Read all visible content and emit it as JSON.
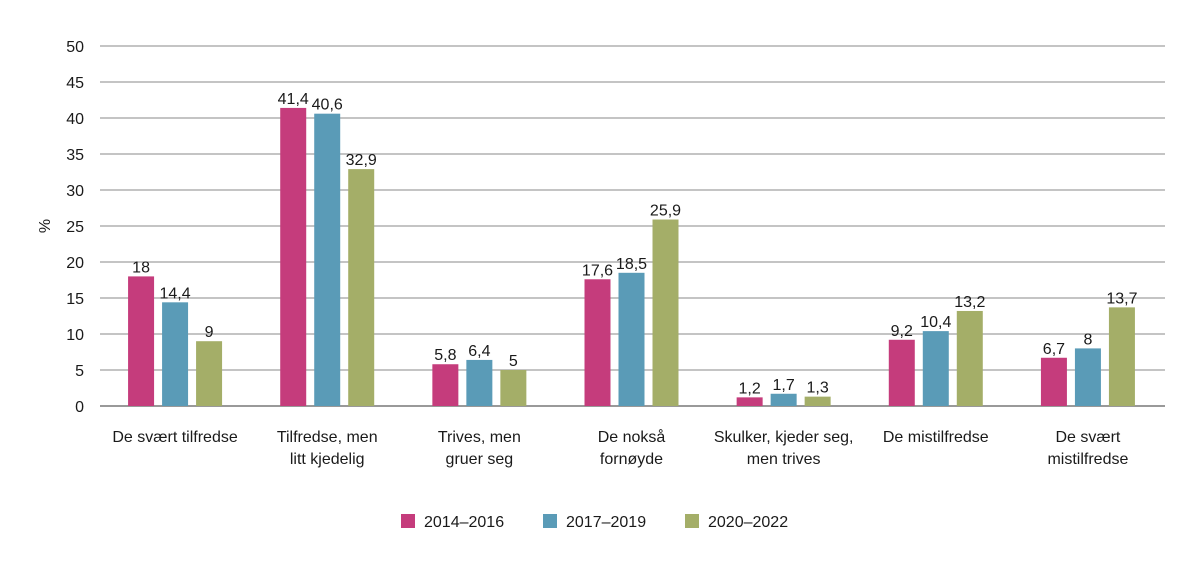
{
  "chart_data": {
    "type": "bar",
    "title": "",
    "xlabel": "",
    "ylabel": "%",
    "ylim": [
      0,
      50
    ],
    "yticks": [
      0,
      5,
      10,
      15,
      20,
      25,
      30,
      35,
      40,
      45,
      50
    ],
    "grid": true,
    "legend_position": "bottom",
    "categories": [
      [
        "De svært tilfredse"
      ],
      [
        "Tilfredse, men",
        "litt kjedelig"
      ],
      [
        "Trives, men",
        "gruer seg"
      ],
      [
        "De nokså",
        "fornøyde"
      ],
      [
        "Skulker, kjeder seg,",
        "men trives"
      ],
      [
        "De mistilfredse"
      ],
      [
        "De svært",
        "mistilfredse"
      ]
    ],
    "series": [
      {
        "name": "2014–2016",
        "color": "#c53c7c",
        "values": [
          18,
          41.4,
          5.8,
          17.6,
          1.2,
          9.2,
          6.7
        ],
        "labels": [
          "18",
          "41,4",
          "5,8",
          "17,6",
          "1,2",
          "9,2",
          "6,7"
        ]
      },
      {
        "name": "2017–2019",
        "color": "#5a9bb7",
        "values": [
          14.4,
          40.6,
          6.4,
          18.5,
          1.7,
          10.4,
          8
        ],
        "labels": [
          "14,4",
          "40,6",
          "6,4",
          "18,5",
          "1,7",
          "10,4",
          "8"
        ]
      },
      {
        "name": "2020–2022",
        "color": "#a4ae68",
        "values": [
          9,
          32.9,
          5,
          25.9,
          1.3,
          13.2,
          13.7
        ],
        "labels": [
          "9",
          "32,9",
          "5",
          "25,9",
          "1,3",
          "13,2",
          "13,7"
        ]
      }
    ]
  }
}
